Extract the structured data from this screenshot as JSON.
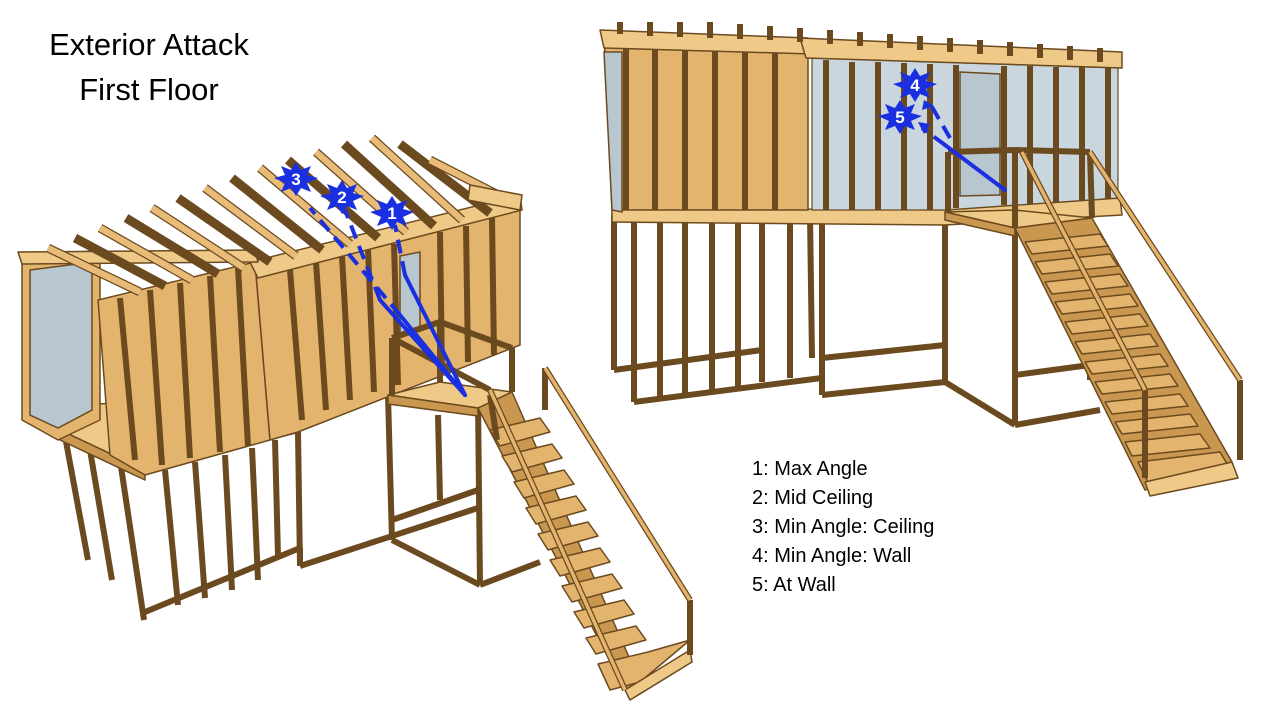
{
  "title": {
    "line1": "Exterior Attack",
    "line2": "First Floor"
  },
  "markers": {
    "m1": "1",
    "m2": "2",
    "m3": "3",
    "m4": "4",
    "m5": "5"
  },
  "legend": {
    "item1": "1: Max Angle",
    "item2": "2: Mid Ceiling",
    "item3": "3: Min Angle: Ceiling",
    "item4": "4: Min Angle: Wall",
    "item5": "5: At Wall"
  },
  "colors": {
    "stream": "#1a2fe0",
    "wood": "#e3b46e",
    "glass": "#b8c6cf"
  }
}
